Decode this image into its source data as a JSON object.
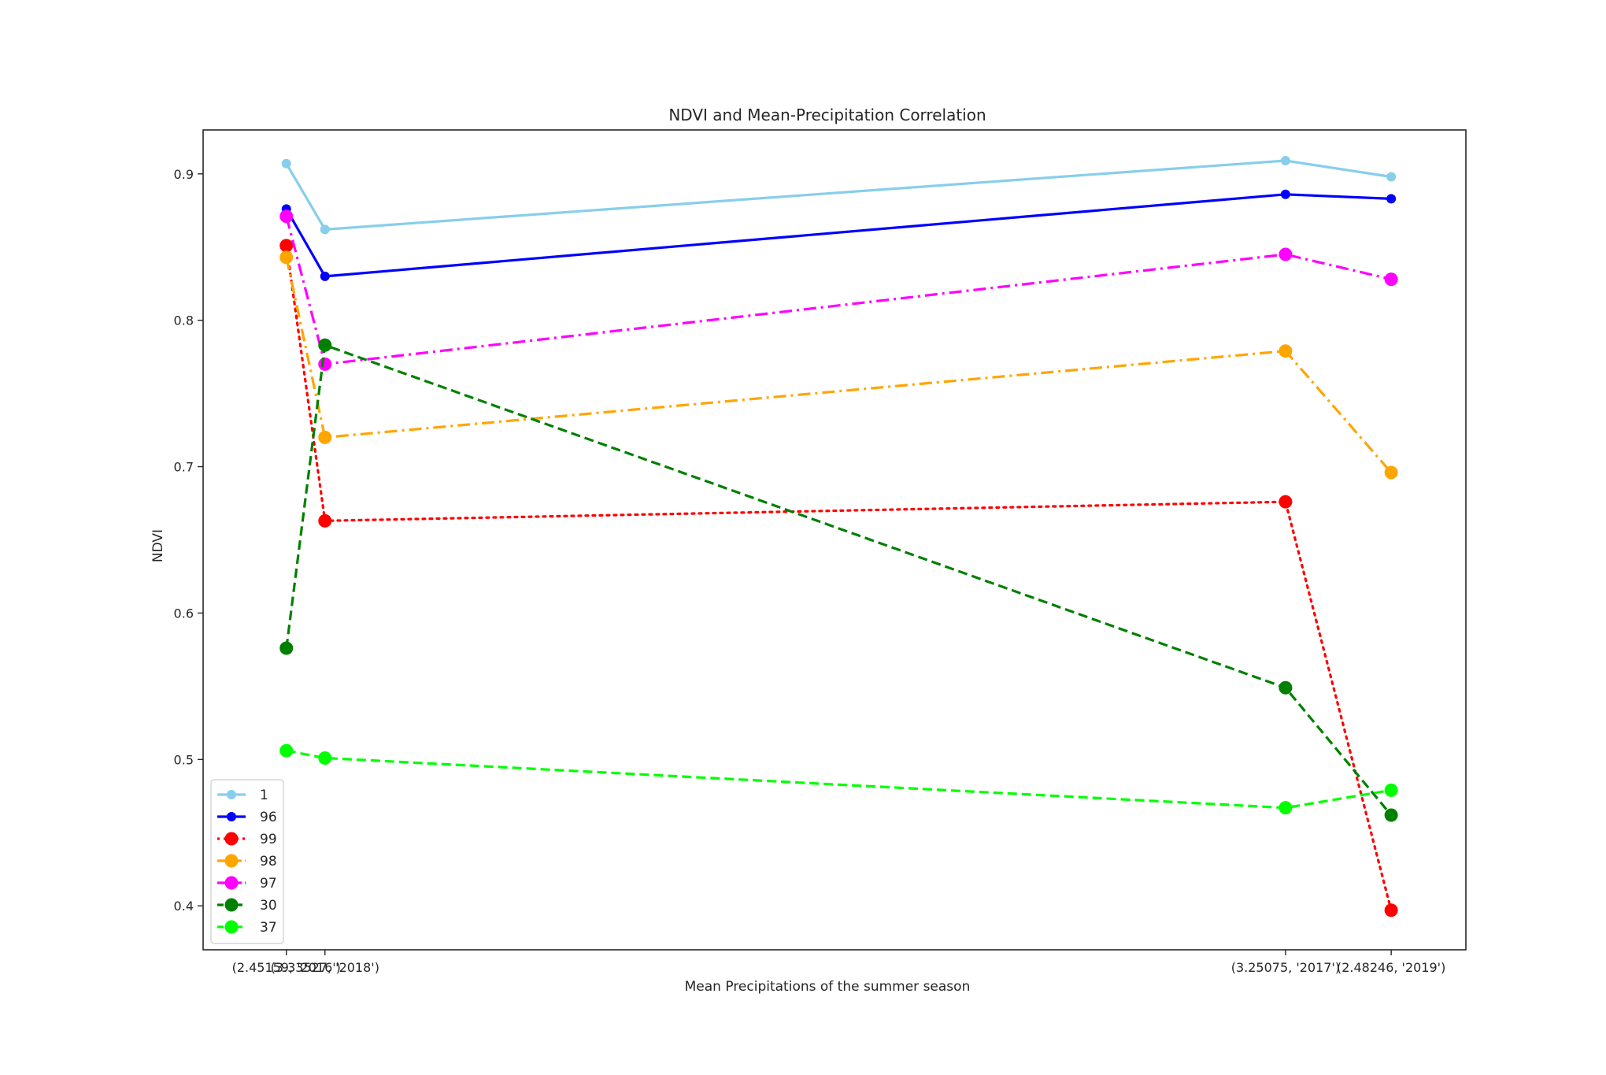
{
  "chart_data": {
    "type": "line",
    "title": "NDVI and Mean-Precipitation  Correlation",
    "xlabel": "Mean Precipitations of the summer season",
    "ylabel": "NDVI",
    "x_values": [
      2.45159,
      2.48246,
      3.25075,
      3.33527
    ],
    "x_tick_labels": [
      "(2.45159, '2016')",
      "(3.33527, '2018')",
      "(3.25075, '2017')",
      "(2.48246, '2019')"
    ],
    "ylim": [
      0.37,
      0.93
    ],
    "y_ticks": [
      0.4,
      0.5,
      0.6,
      0.7,
      0.8,
      0.9
    ],
    "y_tick_labels": [
      "0.4",
      "0.5",
      "0.6",
      "0.7",
      "0.8",
      "0.9"
    ],
    "grid": false,
    "legend_position": "lower-left",
    "series": [
      {
        "name": "1",
        "color": "#87ceeb",
        "style": "solid",
        "marker": "small",
        "values": [
          0.907,
          0.862,
          0.909,
          0.898
        ]
      },
      {
        "name": "96",
        "color": "#0000ff",
        "style": "solid",
        "marker": "small",
        "values": [
          0.876,
          0.83,
          0.886,
          0.883
        ]
      },
      {
        "name": "99",
        "color": "#ff0000",
        "style": "dotted",
        "marker": "large",
        "values": [
          0.851,
          0.663,
          0.676,
          0.397
        ]
      },
      {
        "name": "98",
        "color": "#ffa500",
        "style": "dashdot",
        "marker": "large",
        "values": [
          0.843,
          0.72,
          0.779,
          0.696
        ]
      },
      {
        "name": "97",
        "color": "#ff00ff",
        "style": "dashdot",
        "marker": "large",
        "values": [
          0.871,
          0.77,
          0.845,
          0.828
        ]
      },
      {
        "name": "30",
        "color": "#008000",
        "style": "dashed",
        "marker": "large",
        "values": [
          0.576,
          0.783,
          0.549,
          0.462
        ]
      },
      {
        "name": "37",
        "color": "#00ff00",
        "style": "dashed",
        "marker": "large",
        "values": [
          0.506,
          0.501,
          0.467,
          0.479
        ]
      }
    ]
  }
}
